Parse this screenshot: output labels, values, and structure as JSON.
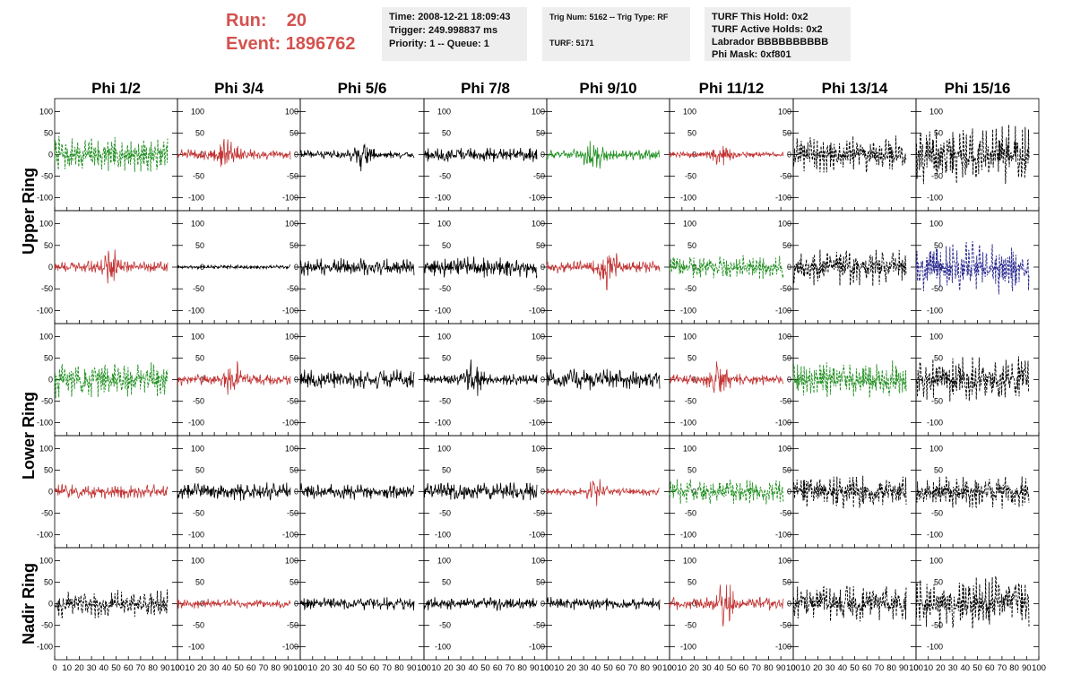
{
  "header": {
    "run_label": "Run:",
    "run_value": "20",
    "event_label": "Event:",
    "event_value": "1896762",
    "time": "Time: 2008-12-21 18:09:43",
    "trigger": "Trigger: 249.998837 ms",
    "priority": "Priority: 1 -- Queue: 1",
    "trig_num": "Trig Num: 5162 -- Trig Type: RF",
    "turf": "TURF: 5171",
    "turf_this_hold": "TURF This Hold: 0x2",
    "turf_active_holds": "TURF Active Holds: 0x2",
    "labrador": "Labrador BBBBBBBBBB",
    "phi_mask": "Phi Mask: 0xf801"
  },
  "colors": {
    "run_text": "#d4524e",
    "box_bg": "#eeeeee",
    "green": "#1f8f1f",
    "red": "#c23434",
    "black": "#000000",
    "blue": "#25258f"
  },
  "chart_data": {
    "type": "line",
    "columns": [
      "Phi 1/2",
      "Phi 3/4",
      "Phi 5/6",
      "Phi 7/8",
      "Phi 9/10",
      "Phi 11/12",
      "Phi 13/14",
      "Phi 15/16"
    ],
    "rows": [
      "Upper Ring",
      "Upper Ring",
      "Lower Ring",
      "Lower Ring",
      "Nadir Ring"
    ],
    "row_label_groups": [
      {
        "label": "Upper Ring",
        "rows": [
          0,
          1
        ]
      },
      {
        "label": "Lower Ring",
        "rows": [
          2,
          3
        ]
      },
      {
        "label": "Nadir Ring",
        "rows": [
          4
        ]
      }
    ],
    "xlim": [
      0,
      100
    ],
    "ylim": [
      -130,
      130
    ],
    "xticks": [
      0,
      10,
      20,
      30,
      40,
      50,
      60,
      70,
      80,
      90,
      100
    ],
    "yticks": [
      -100,
      -50,
      0,
      50,
      100
    ],
    "signal_x_range": [
      0,
      92
    ],
    "grid": false,
    "panels": [
      {
        "row": 0,
        "col": 0,
        "color": "green",
        "dashed": true,
        "amplitude": 45,
        "burst_at": null
      },
      {
        "row": 0,
        "col": 1,
        "color": "red",
        "dashed": false,
        "amplitude": 25,
        "burst_at": 40
      },
      {
        "row": 0,
        "col": 2,
        "color": "black",
        "dashed": false,
        "amplitude": 20,
        "burst_at": 50
      },
      {
        "row": 0,
        "col": 3,
        "color": "black",
        "dashed": false,
        "amplitude": 18,
        "burst_at": null
      },
      {
        "row": 0,
        "col": 4,
        "color": "green",
        "dashed": false,
        "amplitude": 25,
        "burst_at": 38
      },
      {
        "row": 0,
        "col": 5,
        "color": "red",
        "dashed": false,
        "amplitude": 15,
        "burst_at": 42
      },
      {
        "row": 0,
        "col": 6,
        "color": "black",
        "dashed": true,
        "amplitude": 45,
        "burst_at": null
      },
      {
        "row": 0,
        "col": 7,
        "color": "black",
        "dashed": true,
        "amplitude": 70,
        "burst_at": null
      },
      {
        "row": 1,
        "col": 0,
        "color": "red",
        "dashed": false,
        "amplitude": 28,
        "burst_at": 45
      },
      {
        "row": 1,
        "col": 1,
        "color": "black",
        "dashed": false,
        "amplitude": 5,
        "burst_at": null
      },
      {
        "row": 1,
        "col": 2,
        "color": "black",
        "dashed": false,
        "amplitude": 22,
        "burst_at": null
      },
      {
        "row": 1,
        "col": 3,
        "color": "black",
        "dashed": false,
        "amplitude": 26,
        "burst_at": null
      },
      {
        "row": 1,
        "col": 4,
        "color": "red",
        "dashed": false,
        "amplitude": 28,
        "burst_at": 50
      },
      {
        "row": 1,
        "col": 5,
        "color": "green",
        "dashed": true,
        "amplitude": 28,
        "burst_at": null
      },
      {
        "row": 1,
        "col": 6,
        "color": "black",
        "dashed": true,
        "amplitude": 45,
        "burst_at": null
      },
      {
        "row": 1,
        "col": 7,
        "color": "blue",
        "dashed": true,
        "amplitude": 65,
        "burst_at": null
      },
      {
        "row": 2,
        "col": 0,
        "color": "green",
        "dashed": true,
        "amplitude": 45,
        "burst_at": null
      },
      {
        "row": 2,
        "col": 1,
        "color": "red",
        "dashed": false,
        "amplitude": 25,
        "burst_at": 45
      },
      {
        "row": 2,
        "col": 2,
        "color": "black",
        "dashed": false,
        "amplitude": 24,
        "burst_at": null
      },
      {
        "row": 2,
        "col": 3,
        "color": "black",
        "dashed": false,
        "amplitude": 24,
        "burst_at": 40
      },
      {
        "row": 2,
        "col": 4,
        "color": "black",
        "dashed": false,
        "amplitude": 26,
        "burst_at": null
      },
      {
        "row": 2,
        "col": 5,
        "color": "red",
        "dashed": false,
        "amplitude": 26,
        "burst_at": 40
      },
      {
        "row": 2,
        "col": 6,
        "color": "green",
        "dashed": true,
        "amplitude": 45,
        "burst_at": null
      },
      {
        "row": 2,
        "col": 7,
        "color": "black",
        "dashed": true,
        "amplitude": 55,
        "burst_at": null
      },
      {
        "row": 3,
        "col": 0,
        "color": "red",
        "dashed": false,
        "amplitude": 18,
        "burst_at": null
      },
      {
        "row": 3,
        "col": 1,
        "color": "black",
        "dashed": false,
        "amplitude": 22,
        "burst_at": null
      },
      {
        "row": 3,
        "col": 2,
        "color": "black",
        "dashed": false,
        "amplitude": 20,
        "burst_at": null
      },
      {
        "row": 3,
        "col": 3,
        "color": "black",
        "dashed": false,
        "amplitude": 24,
        "burst_at": null
      },
      {
        "row": 3,
        "col": 4,
        "color": "red",
        "dashed": false,
        "amplitude": 18,
        "burst_at": 40
      },
      {
        "row": 3,
        "col": 5,
        "color": "green",
        "dashed": true,
        "amplitude": 30,
        "burst_at": null
      },
      {
        "row": 3,
        "col": 6,
        "color": "black",
        "dashed": true,
        "amplitude": 40,
        "burst_at": null
      },
      {
        "row": 3,
        "col": 7,
        "color": "black",
        "dashed": true,
        "amplitude": 40,
        "burst_at": null
      },
      {
        "row": 4,
        "col": 0,
        "color": "black",
        "dashed": true,
        "amplitude": 35,
        "burst_at": null
      },
      {
        "row": 4,
        "col": 1,
        "color": "red",
        "dashed": false,
        "amplitude": 12,
        "burst_at": null
      },
      {
        "row": 4,
        "col": 2,
        "color": "black",
        "dashed": false,
        "amplitude": 16,
        "burst_at": null
      },
      {
        "row": 4,
        "col": 3,
        "color": "black",
        "dashed": false,
        "amplitude": 16,
        "burst_at": null
      },
      {
        "row": 4,
        "col": 4,
        "color": "black",
        "dashed": false,
        "amplitude": 16,
        "burst_at": null
      },
      {
        "row": 4,
        "col": 5,
        "color": "red",
        "dashed": false,
        "amplitude": 30,
        "burst_at": 45
      },
      {
        "row": 4,
        "col": 6,
        "color": "black",
        "dashed": true,
        "amplitude": 45,
        "burst_at": null
      },
      {
        "row": 4,
        "col": 7,
        "color": "black",
        "dashed": true,
        "amplitude": 65,
        "burst_at": null
      }
    ]
  }
}
